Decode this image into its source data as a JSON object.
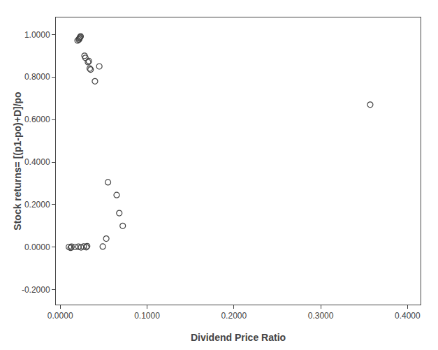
{
  "chart_data": {
    "type": "scatter",
    "xlabel": "Dividend Price Ratio",
    "ylabel": "Stock returns= [(p1-po)+D]/po",
    "xlim": [
      -0.005,
      0.415
    ],
    "ylim": [
      -0.27,
      1.08
    ],
    "xticks": [
      {
        "value": 0.0,
        "label": "0.0000"
      },
      {
        "value": 0.1,
        "label": "0.1000"
      },
      {
        "value": 0.2,
        "label": "0.2000"
      },
      {
        "value": 0.3,
        "label": "0.3000"
      },
      {
        "value": 0.4,
        "label": "0.4000"
      }
    ],
    "yticks": [
      {
        "value": -0.2,
        "label": "-0.2000"
      },
      {
        "value": 0.0,
        "label": "0.0000"
      },
      {
        "value": 0.2,
        "label": "0.2000"
      },
      {
        "value": 0.4,
        "label": "0.4000"
      },
      {
        "value": 0.6,
        "label": "0.6000"
      },
      {
        "value": 0.8,
        "label": "0.8000"
      },
      {
        "value": 1.0,
        "label": "1.0000"
      }
    ],
    "grid": false,
    "series": [
      {
        "color": "#444444",
        "marker": "circle-open",
        "x": [
          0.01,
          0.013,
          0.02,
          0.0215,
          0.022,
          0.0225,
          0.023,
          0.0235,
          0.028,
          0.029,
          0.032,
          0.033,
          0.034,
          0.035,
          0.04,
          0.045,
          0.049,
          0.055,
          0.065,
          0.068,
          0.072,
          0.357
        ],
        "values": [
          0.001,
          0.002,
          0.972,
          0.976,
          0.981,
          0.985,
          0.988,
          0.991,
          0.9,
          0.89,
          0.87,
          0.875,
          0.84,
          0.835,
          0.78,
          0.85,
          0.003,
          0.305,
          0.245,
          0.16,
          0.1,
          0.67
        ]
      },
      {
        "color": "#444444",
        "marker": "circle-open",
        "x": [
          0.012,
          0.017,
          0.021,
          0.024,
          0.027,
          0.03,
          0.031,
          0.053
        ],
        "values": [
          -0.003,
          0.001,
          0.002,
          -0.001,
          0.003,
          0.0,
          0.005,
          0.04
        ]
      }
    ]
  }
}
